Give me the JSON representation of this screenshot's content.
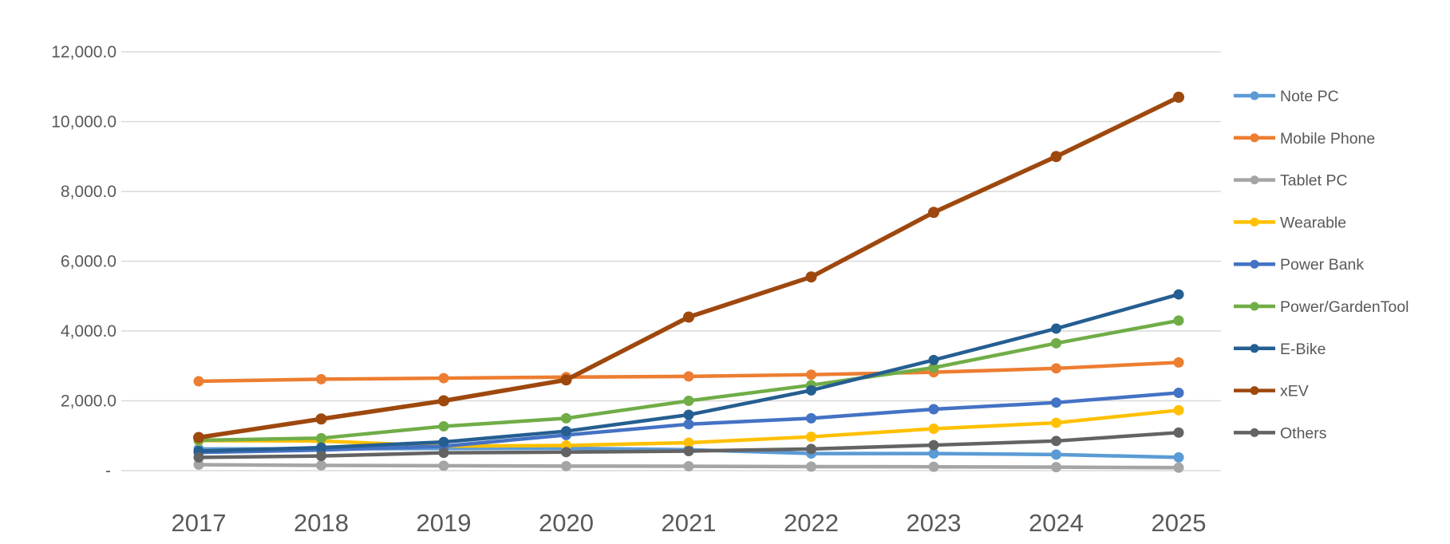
{
  "chart_data": {
    "type": "line",
    "title": "",
    "xlabel": "",
    "ylabel": "",
    "categories": [
      "2017",
      "2018",
      "2019",
      "2020",
      "2021",
      "2022",
      "2023",
      "2024",
      "2025"
    ],
    "series": [
      {
        "name": "Note PC",
        "color": "#5B9BD5",
        "values": [
          620,
          625,
          635,
          640,
          600,
          490,
          490,
          460,
          380
        ]
      },
      {
        "name": "Mobile Phone",
        "color": "#ED7D31",
        "values": [
          2560,
          2620,
          2650,
          2680,
          2700,
          2750,
          2820,
          2930,
          3100
        ]
      },
      {
        "name": "Tablet PC",
        "color": "#A5A5A5",
        "values": [
          170,
          150,
          140,
          130,
          125,
          115,
          110,
          100,
          85
        ]
      },
      {
        "name": "Wearable",
        "color": "#FFC000",
        "values": [
          860,
          850,
          700,
          720,
          800,
          970,
          1200,
          1370,
          1730
        ]
      },
      {
        "name": "Power Bank",
        "color": "#4472C4",
        "values": [
          520,
          590,
          700,
          1020,
          1330,
          1500,
          1760,
          1950,
          2230
        ]
      },
      {
        "name": "Power/GardenTool",
        "color": "#70AD47",
        "values": [
          870,
          930,
          1270,
          1500,
          2000,
          2450,
          2950,
          3650,
          4300
        ]
      },
      {
        "name": "E-Bike",
        "color": "#255E91",
        "values": [
          560,
          660,
          820,
          1130,
          1600,
          2300,
          3170,
          4070,
          5050
        ]
      },
      {
        "name": "xEV",
        "color": "#9E480E",
        "values": [
          950,
          1480,
          2000,
          2600,
          4400,
          5550,
          7400,
          9000,
          10700
        ],
        "emphasis": true
      },
      {
        "name": "Others",
        "color": "#636363",
        "values": [
          380,
          420,
          510,
          530,
          560,
          620,
          730,
          850,
          1090
        ]
      }
    ],
    "yticks": {
      "values": [
        0,
        2000,
        4000,
        6000,
        8000,
        10000,
        12000
      ],
      "labels": [
        "-",
        "2,000.0",
        "4,000.0",
        "6,000.0",
        "8,000.0",
        "10,000.0",
        "12,000.0"
      ]
    },
    "ylim": [
      0,
      12000
    ],
    "grid": true,
    "legend_position": "right",
    "axis_text_color": "#595959",
    "gridline_color": "#D9D9D9",
    "background_color": "#FFFFFF"
  }
}
